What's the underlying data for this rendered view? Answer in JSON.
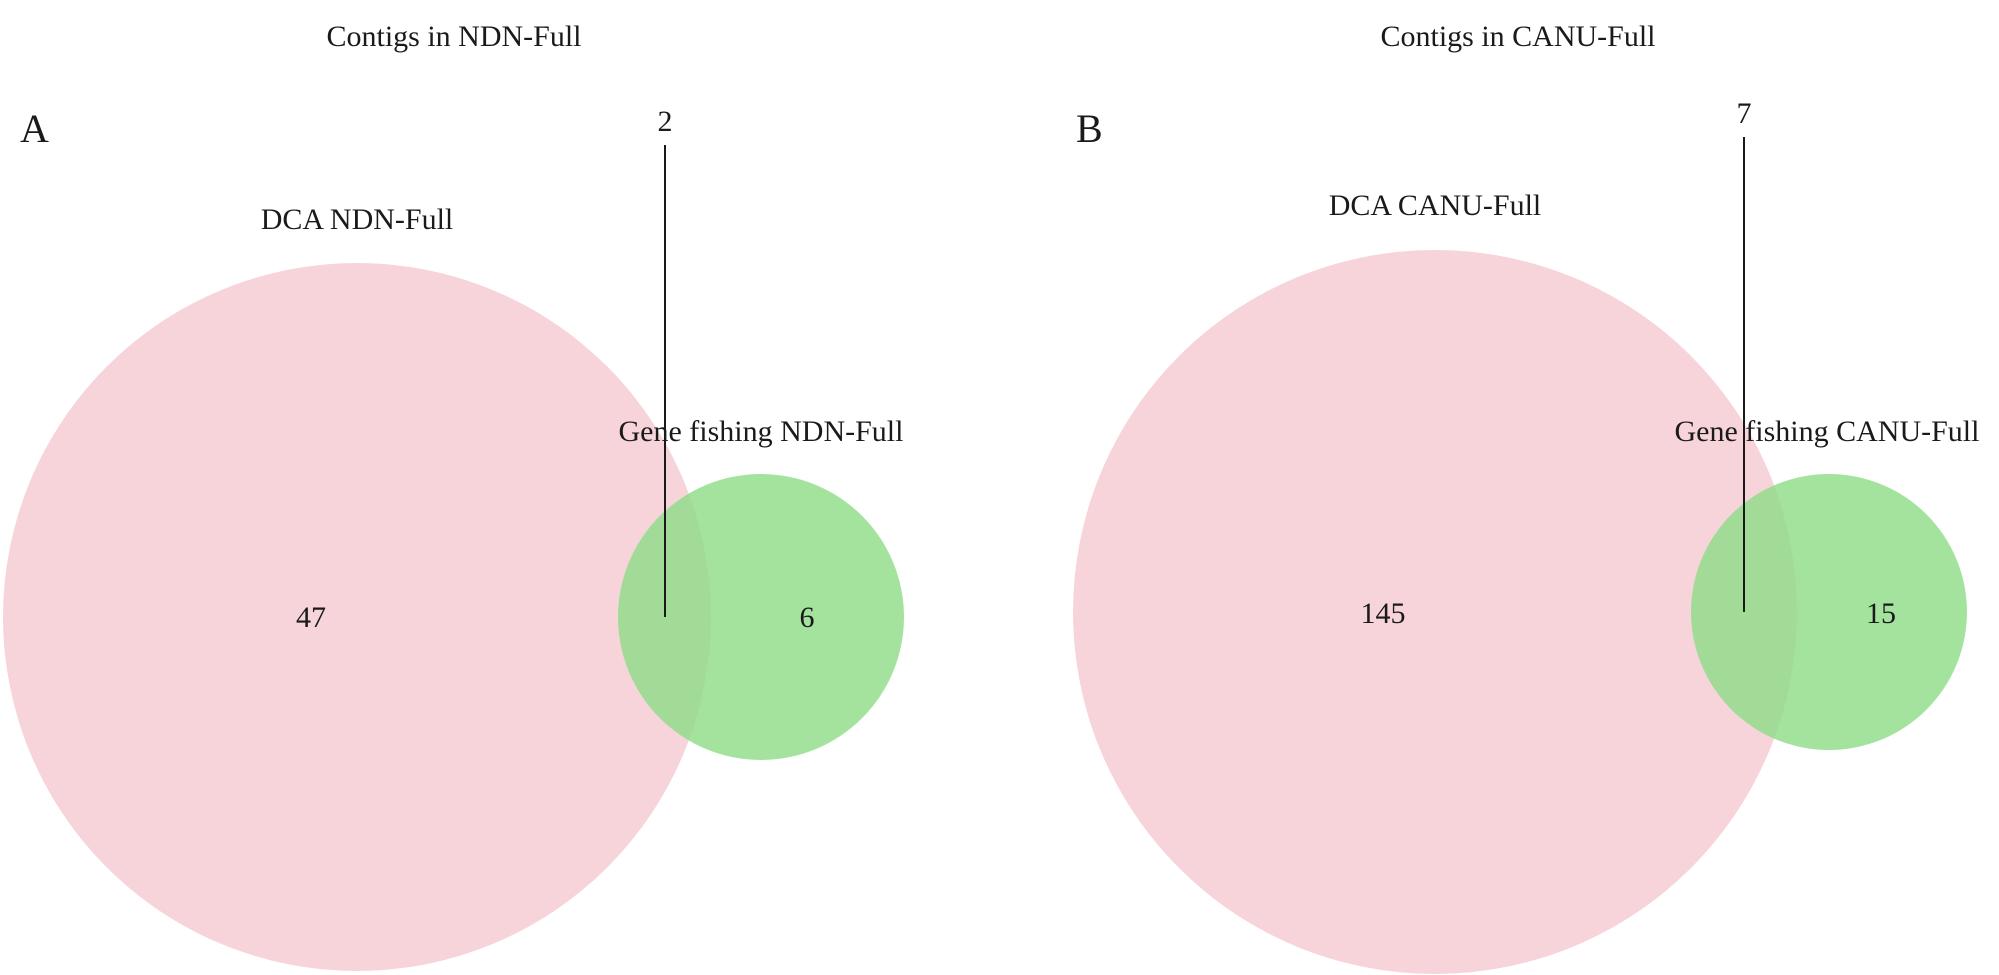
{
  "chart_data": [
    {
      "type": "venn",
      "panel": "A",
      "title": "Contigs in NDN-Full",
      "sets": [
        {
          "name": "DCA NDN-Full",
          "color": "#f4c9d0"
        },
        {
          "name": "Gene fishing NDN-Full",
          "color": "#8ddc86"
        }
      ],
      "regions": {
        "only_first": 47,
        "intersection": 2,
        "only_second": 6
      }
    },
    {
      "type": "venn",
      "panel": "B",
      "title": "Contigs in CANU-Full",
      "sets": [
        {
          "name": "DCA CANU-Full",
          "color": "#f4c9d0"
        },
        {
          "name": "Gene fishing CANU-Full",
          "color": "#8ddc86"
        }
      ],
      "regions": {
        "only_first": 145,
        "intersection": 7,
        "only_second": 15
      }
    }
  ]
}
